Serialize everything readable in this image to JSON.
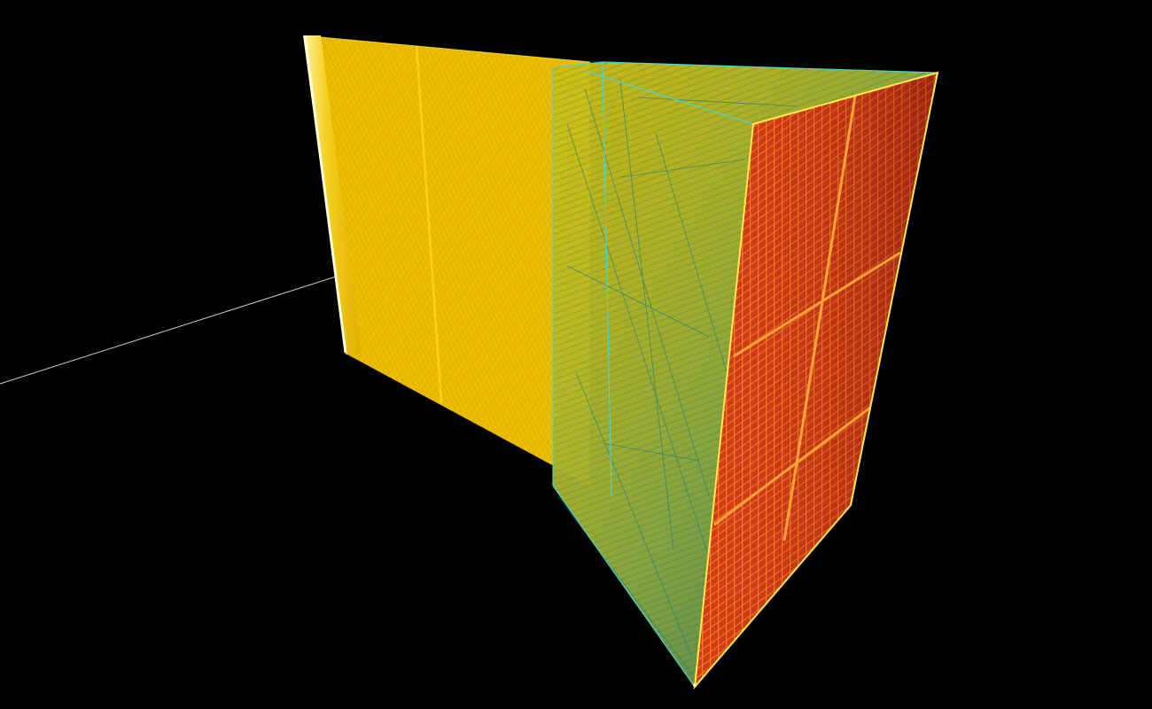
{
  "scene": {
    "background": "#000000",
    "colors": {
      "yellow_fill": "#f2c200",
      "yellow_dark": "#b89000",
      "teal_line": "#1e8080",
      "teal_dark": "#0f4f4f",
      "cyan_edge": "#49d6d0",
      "red_face": "#d23a1a",
      "red_dark": "#8f1c10",
      "orange_grid": "#ff7a1a",
      "white_ray": "#d8d8d8",
      "frame_yellow": "#ffe84a"
    },
    "objects": [
      "ray-line",
      "yellow-slab",
      "yellow-wireframe-volume",
      "teal-wireframe-volume",
      "red-detector-face"
    ]
  }
}
